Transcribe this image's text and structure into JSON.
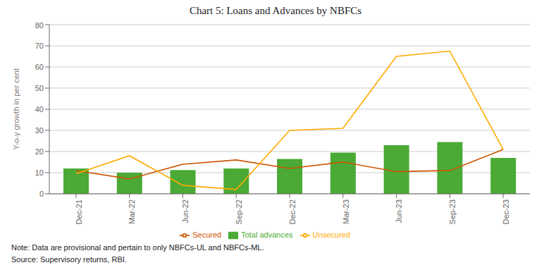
{
  "chart_data": {
    "type": "bar",
    "title": "Chart 5: Loans and Advances by NBFCs",
    "y_label": "Y-o-y growth in per cent",
    "categories": [
      "Dec-21",
      "Mar-22",
      "Jun-22",
      "Sep-22",
      "Dec-22",
      "Mar-23",
      "Jun-23",
      "Sep-23",
      "Dec-23"
    ],
    "series": [
      {
        "name": "Total advances",
        "type": "bar",
        "color": "#4aaa35",
        "values": [
          12.0,
          10.0,
          11.2,
          12.0,
          16.5,
          19.5,
          23.0,
          24.5,
          17.0
        ]
      },
      {
        "name": "Secured",
        "type": "line",
        "color": "#cc5500",
        "values": [
          11.0,
          7.0,
          14.0,
          16.0,
          12.0,
          15.0,
          10.5,
          11.0,
          21.0
        ]
      },
      {
        "name": "Unsecured",
        "type": "line",
        "color": "#ffaa00",
        "values": [
          9.5,
          18.0,
          4.0,
          2.0,
          30.0,
          31.0,
          65.0,
          67.5,
          21.0
        ]
      }
    ],
    "ylim": [
      0,
      80
    ],
    "yticks": [
      0,
      10,
      20,
      30,
      40,
      50,
      60,
      70,
      80
    ],
    "grid": true,
    "legend": "bottom",
    "annotations": [
      "Note: Data are provisional and pertain to only NBFCs-UL and NBFCs-ML.",
      "Source: Supervisory returns, RBI."
    ]
  }
}
